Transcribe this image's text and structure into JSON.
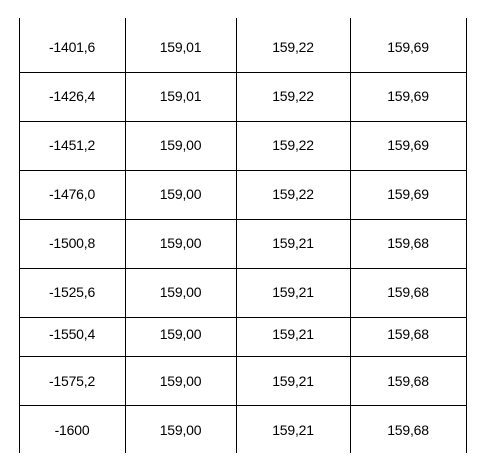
{
  "table": {
    "rows": [
      [
        "-1401,6",
        "159,01",
        "159,22",
        "159,69"
      ],
      [
        "-1426,4",
        "159,01",
        "159,22",
        "159,69"
      ],
      [
        "-1451,2",
        "159,00",
        "159,22",
        "159,69"
      ],
      [
        "-1476,0",
        "159,00",
        "159,22",
        "159,69"
      ],
      [
        "-1500,8",
        "159,00",
        "159,21",
        "159,68"
      ],
      [
        "-1525,6",
        "159,00",
        "159,21",
        "159,68"
      ],
      [
        "-1550,4",
        "159,00",
        "159,21",
        "159,68"
      ],
      [
        "-1575,2",
        "159,00",
        "159,21",
        "159,68"
      ],
      [
        "-1600",
        "159,00",
        "159,21",
        "159,68"
      ]
    ]
  }
}
